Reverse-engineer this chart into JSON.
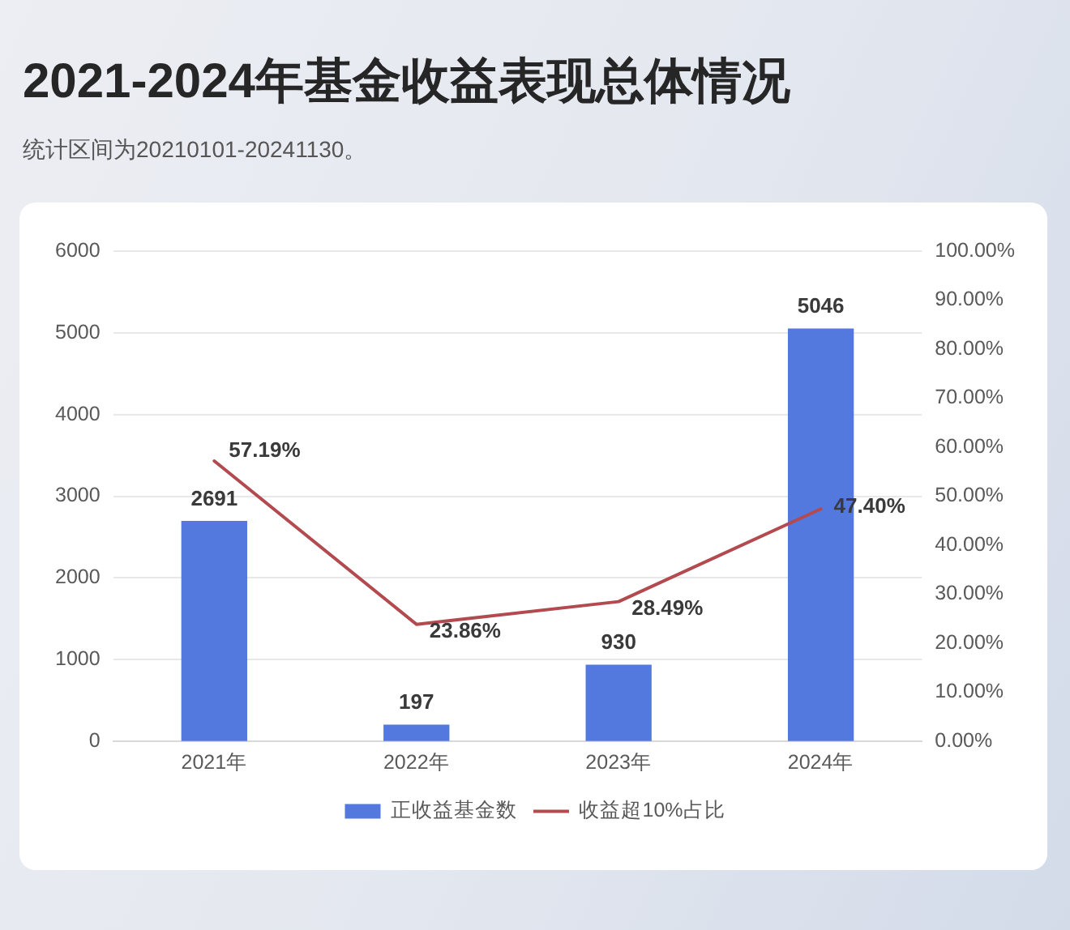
{
  "chart_data": {
    "type": "bar",
    "title": "2021-2024年基金收益表现总体情况",
    "annotations": [
      "统计区间为20210101-20241130。"
    ],
    "categories": [
      "2021年",
      "2022年",
      "2023年",
      "2024年"
    ],
    "series": [
      {
        "name": "正收益基金数",
        "color": "#5479de",
        "values": [
          2691,
          197,
          930,
          5046
        ],
        "value_labels": [
          "2691",
          "197",
          "930",
          "5046"
        ]
      },
      {
        "name": "收益超10%占比",
        "type": "line",
        "axis": "y2",
        "color": "#b24a4f",
        "values": [
          57.19,
          23.86,
          28.49,
          47.4
        ],
        "value_labels": [
          "57.19%",
          "23.86%",
          "28.49%",
          "47.40%"
        ]
      }
    ],
    "ylim": [
      0,
      6000
    ],
    "yticks": [
      0,
      1000,
      2000,
      3000,
      4000,
      5000,
      6000
    ],
    "y2lim": [
      0,
      100
    ],
    "y2ticks": [
      {
        "value": 0,
        "label": "0.00%"
      },
      {
        "value": 10,
        "label": "10.00%"
      },
      {
        "value": 20,
        "label": "20.00%"
      },
      {
        "value": 30,
        "label": "30.00%"
      },
      {
        "value": 40,
        "label": "40.00%"
      },
      {
        "value": 50,
        "label": "50.00%"
      },
      {
        "value": 60,
        "label": "60.00%"
      },
      {
        "value": 70,
        "label": "70.00%"
      },
      {
        "value": 80,
        "label": "80.00%"
      },
      {
        "value": 90,
        "label": "90.00%"
      },
      {
        "value": 100,
        "label": "100.00%"
      }
    ],
    "grid": "y",
    "legend": "bottom",
    "marker": "none"
  }
}
